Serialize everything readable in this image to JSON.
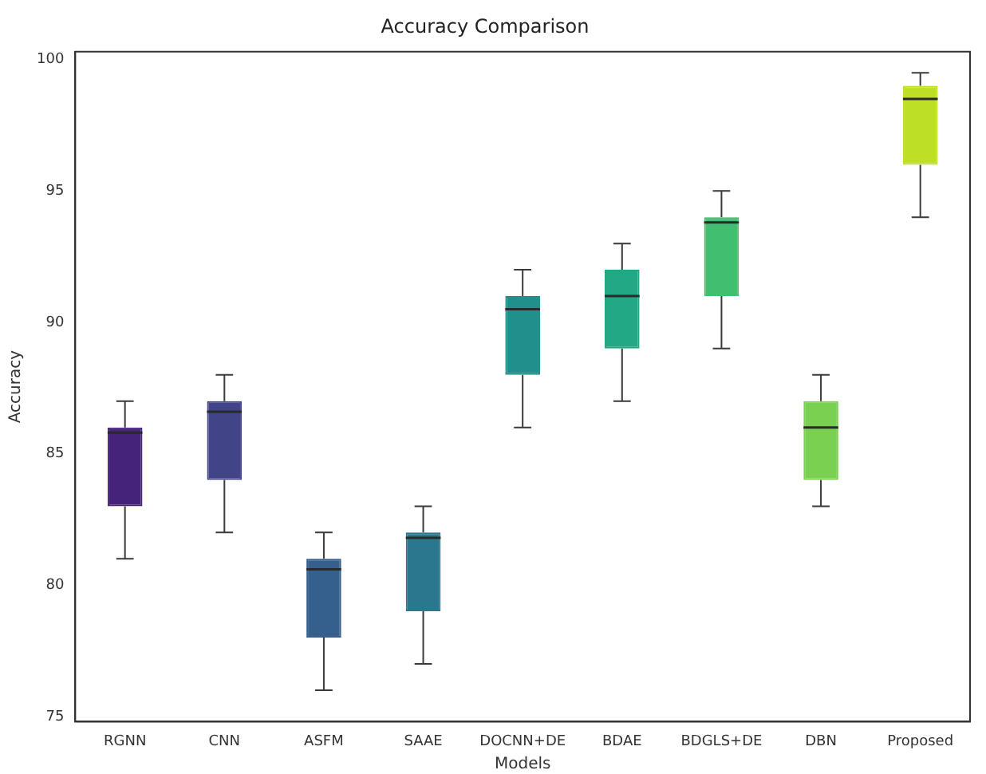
{
  "chart_data": {
    "type": "box",
    "title": "Accuracy Comparison",
    "xlabel": "Models",
    "ylabel": "Accuracy",
    "categories": [
      "RGNN",
      "CNN",
      "ASFM",
      "SAAE",
      "DOCNN+DE",
      "BDAE",
      "BDGLS+DE",
      "DBN",
      "Proposed"
    ],
    "colors": [
      "#45237a",
      "#414487",
      "#355f8d",
      "#2a788e",
      "#21908d",
      "#22a884",
      "#42be71",
      "#7ad151",
      "#bddf26"
    ],
    "boxes": [
      {
        "low": 81,
        "q1": 83,
        "median": 85.8,
        "q3": 86,
        "high": 87
      },
      {
        "low": 82,
        "q1": 84,
        "median": 86.6,
        "q3": 87,
        "high": 88
      },
      {
        "low": 76,
        "q1": 78,
        "median": 80.6,
        "q3": 81,
        "high": 82
      },
      {
        "low": 77,
        "q1": 79,
        "median": 81.8,
        "q3": 82,
        "high": 83
      },
      {
        "low": 86,
        "q1": 88,
        "median": 90.5,
        "q3": 91,
        "high": 92
      },
      {
        "low": 87,
        "q1": 89,
        "median": 91,
        "q3": 92,
        "high": 93
      },
      {
        "low": 89,
        "q1": 91,
        "median": 93.8,
        "q3": 94,
        "high": 95
      },
      {
        "low": 83,
        "q1": 84,
        "median": 86,
        "q3": 87,
        "high": 88
      },
      {
        "low": 94,
        "q1": 96,
        "median": 98.5,
        "q3": 99,
        "high": 99.5
      }
    ],
    "ylim": [
      74.8,
      100.3
    ],
    "yticks": [
      75,
      80,
      85,
      90,
      95,
      100
    ],
    "grid": false,
    "legend": false
  }
}
